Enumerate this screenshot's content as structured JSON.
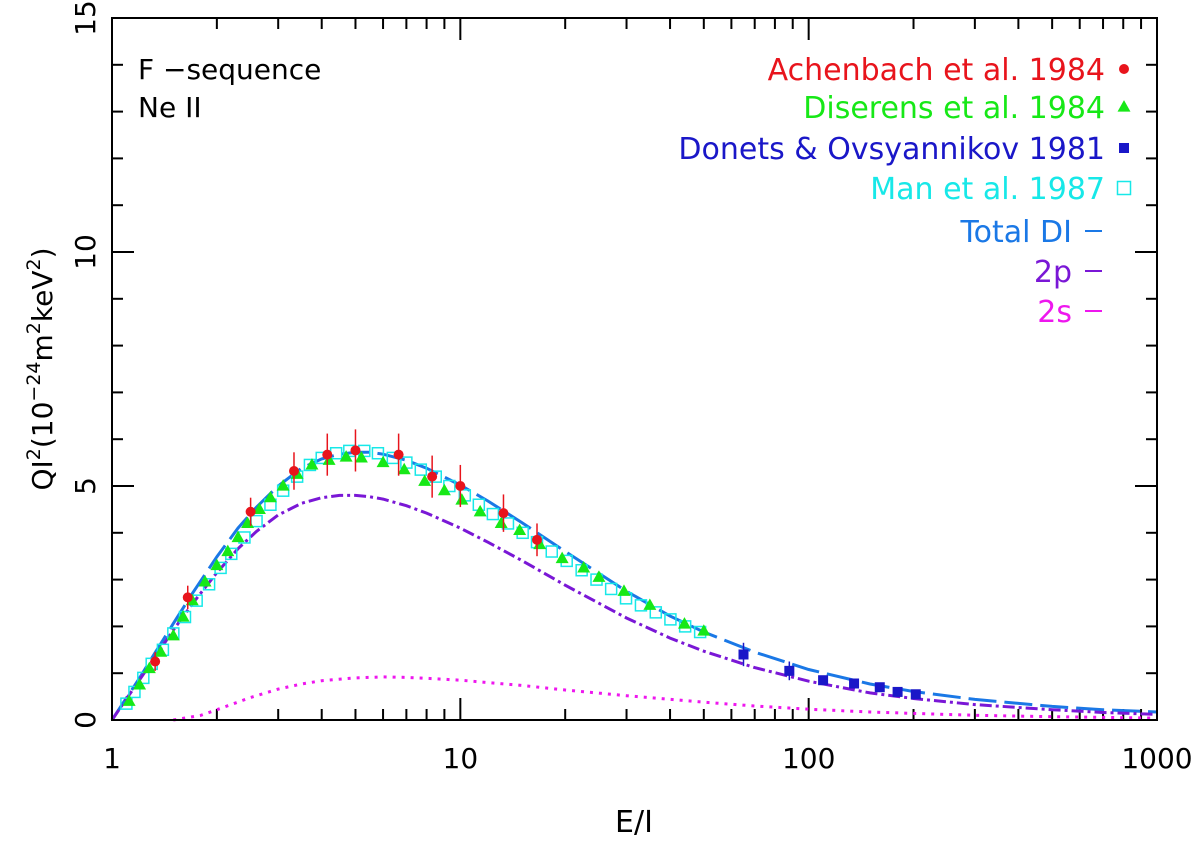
{
  "chart_data": {
    "type": "scatter",
    "xlabel": "E/I",
    "ylabel": {
      "base": "QI",
      "sup1": "2",
      "paren_open": "(10",
      "sup2": "−24",
      "mid": "m",
      "sup3": "2",
      "unit": "keV",
      "sup4": "2",
      "close": ")"
    },
    "x_scale": "log",
    "xlim": [
      1,
      1000
    ],
    "ylim": [
      0,
      15
    ],
    "x_ticks": [
      "1",
      "10",
      "100",
      "1000"
    ],
    "y_ticks": [
      "0",
      "5",
      "10",
      "15"
    ],
    "annotations": [
      "F −sequence",
      "Ne II"
    ],
    "legend_position": "top-right",
    "colors": {
      "achenbach": "#e8141c",
      "diserens": "#17e817",
      "donets": "#1a17c8",
      "man": "#17e8e8",
      "total": "#1a78e6",
      "p2": "#7a17d6",
      "s2": "#ee17ee",
      "axis": "#000000"
    },
    "legend": [
      {
        "key": "achenbach",
        "label": "Achenbach et al. 1984",
        "marker": "circle"
      },
      {
        "key": "diserens",
        "label": "Diserens et al. 1984",
        "marker": "triangle"
      },
      {
        "key": "donets",
        "label": "Donets & Ovsyannikov 1981",
        "marker": "square"
      },
      {
        "key": "man",
        "label": "Man et al. 1987",
        "marker": "open-square"
      },
      {
        "key": "total",
        "label": "Total DI",
        "marker": "line"
      },
      {
        "key": "p2",
        "label": "2p",
        "marker": "line"
      },
      {
        "key": "s2",
        "label": "2s",
        "marker": "line"
      }
    ],
    "series": [
      {
        "key": "achenbach",
        "name": "Achenbach et al. 1984",
        "marker": "circle",
        "points": [
          [
            1.33,
            1.25,
            0.2
          ],
          [
            1.65,
            2.62,
            0.25
          ],
          [
            2.5,
            4.45,
            0.3
          ],
          [
            3.33,
            5.32,
            0.4
          ],
          [
            4.15,
            5.67,
            0.45
          ],
          [
            5.0,
            5.76,
            0.45
          ],
          [
            6.65,
            5.67,
            0.45
          ],
          [
            8.3,
            5.2,
            0.45
          ],
          [
            10.0,
            5.0,
            0.45
          ],
          [
            13.3,
            4.42,
            0.4
          ],
          [
            16.6,
            3.85,
            0.35
          ]
        ]
      },
      {
        "key": "diserens",
        "name": "Diserens et al. 1984",
        "marker": "triangle",
        "points": [
          [
            1.12,
            0.4
          ],
          [
            1.2,
            0.75
          ],
          [
            1.28,
            1.1
          ],
          [
            1.38,
            1.45
          ],
          [
            1.5,
            1.8
          ],
          [
            1.6,
            2.2
          ],
          [
            1.7,
            2.55
          ],
          [
            1.85,
            2.95
          ],
          [
            2.0,
            3.3
          ],
          [
            2.15,
            3.6
          ],
          [
            2.3,
            3.9
          ],
          [
            2.45,
            4.2
          ],
          [
            2.65,
            4.5
          ],
          [
            2.85,
            4.75
          ],
          [
            3.1,
            5.0
          ],
          [
            3.4,
            5.25
          ],
          [
            3.75,
            5.45
          ],
          [
            4.2,
            5.55
          ],
          [
            4.7,
            5.62
          ],
          [
            5.2,
            5.6
          ],
          [
            6.0,
            5.5
          ],
          [
            6.9,
            5.35
          ],
          [
            7.9,
            5.1
          ],
          [
            9.0,
            4.9
          ],
          [
            10.1,
            4.7
          ],
          [
            11.4,
            4.45
          ],
          [
            13.1,
            4.2
          ],
          [
            14.8,
            4.05
          ],
          [
            16.9,
            3.75
          ],
          [
            19.6,
            3.45
          ],
          [
            22.6,
            3.25
          ],
          [
            25.0,
            3.05
          ],
          [
            29.5,
            2.75
          ],
          [
            35.0,
            2.45
          ],
          [
            44.0,
            2.05
          ],
          [
            50.0,
            1.9
          ]
        ]
      },
      {
        "key": "donets",
        "name": "Donets & Ovsyannikov 1981",
        "marker": "square",
        "points": [
          [
            65,
            1.4,
            0.25
          ],
          [
            88,
            1.05,
            0.2
          ],
          [
            110,
            0.85,
            0.1
          ],
          [
            135,
            0.78,
            0.1
          ],
          [
            160,
            0.7,
            0.1
          ],
          [
            180,
            0.6,
            0.1
          ],
          [
            203,
            0.55,
            0.1
          ]
        ]
      },
      {
        "key": "man",
        "name": "Man et al. 1987",
        "marker": "open-square",
        "points": [
          [
            1.1,
            0.35
          ],
          [
            1.16,
            0.6
          ],
          [
            1.23,
            0.9
          ],
          [
            1.3,
            1.2
          ],
          [
            1.4,
            1.5
          ],
          [
            1.5,
            1.85
          ],
          [
            1.62,
            2.2
          ],
          [
            1.75,
            2.55
          ],
          [
            1.9,
            2.9
          ],
          [
            2.05,
            3.25
          ],
          [
            2.2,
            3.55
          ],
          [
            2.4,
            3.9
          ],
          [
            2.6,
            4.25
          ],
          [
            2.85,
            4.6
          ],
          [
            3.1,
            4.9
          ],
          [
            3.4,
            5.2
          ],
          [
            3.7,
            5.45
          ],
          [
            4.0,
            5.6
          ],
          [
            4.4,
            5.7
          ],
          [
            4.8,
            5.75
          ],
          [
            5.3,
            5.75
          ],
          [
            5.8,
            5.7
          ],
          [
            6.4,
            5.6
          ],
          [
            7.0,
            5.5
          ],
          [
            7.7,
            5.35
          ],
          [
            8.5,
            5.2
          ],
          [
            9.3,
            5.0
          ],
          [
            10.3,
            4.8
          ],
          [
            11.3,
            4.6
          ],
          [
            12.4,
            4.4
          ],
          [
            13.7,
            4.2
          ],
          [
            15.1,
            4.0
          ],
          [
            16.6,
            3.8
          ],
          [
            18.3,
            3.6
          ],
          [
            20.2,
            3.4
          ],
          [
            22.3,
            3.2
          ],
          [
            24.6,
            3.0
          ],
          [
            27.1,
            2.8
          ],
          [
            29.9,
            2.6
          ],
          [
            33.0,
            2.45
          ],
          [
            36.4,
            2.3
          ],
          [
            40.1,
            2.15
          ],
          [
            44.2,
            2.0
          ],
          [
            48.8,
            1.88
          ]
        ]
      },
      {
        "key": "total",
        "name": "Total DI",
        "marker": "line",
        "dash": "28,8",
        "curve": [
          [
            1.0,
            0.0
          ],
          [
            1.1,
            0.47
          ],
          [
            1.2,
            0.9
          ],
          [
            1.3,
            1.32
          ],
          [
            1.5,
            2.06
          ],
          [
            1.7,
            2.7
          ],
          [
            2.0,
            3.49
          ],
          [
            2.3,
            4.1
          ],
          [
            2.6,
            4.55
          ],
          [
            3.0,
            5.0
          ],
          [
            3.5,
            5.38
          ],
          [
            4.0,
            5.58
          ],
          [
            4.5,
            5.68
          ],
          [
            5.0,
            5.72
          ],
          [
            5.5,
            5.72
          ],
          [
            6.0,
            5.68
          ],
          [
            7.0,
            5.55
          ],
          [
            8.0,
            5.38
          ],
          [
            10.0,
            5.02
          ],
          [
            12.0,
            4.68
          ],
          [
            15.0,
            4.22
          ],
          [
            20.0,
            3.6
          ],
          [
            30.0,
            2.75
          ],
          [
            40.0,
            2.22
          ],
          [
            50.0,
            1.88
          ],
          [
            70.0,
            1.45
          ],
          [
            100.0,
            1.08
          ],
          [
            150.0,
            0.77
          ],
          [
            200.0,
            0.61
          ],
          [
            300.0,
            0.44
          ],
          [
            500.0,
            0.29
          ],
          [
            700.0,
            0.22
          ],
          [
            1000.0,
            0.17
          ]
        ]
      },
      {
        "key": "p2",
        "name": "2p",
        "marker": "line",
        "dash": "12,4,3,4",
        "curve": [
          [
            1.0,
            0.0
          ],
          [
            1.1,
            0.45
          ],
          [
            1.2,
            0.86
          ],
          [
            1.3,
            1.24
          ],
          [
            1.5,
            1.92
          ],
          [
            1.7,
            2.48
          ],
          [
            2.0,
            3.15
          ],
          [
            2.3,
            3.66
          ],
          [
            2.6,
            4.03
          ],
          [
            3.0,
            4.38
          ],
          [
            3.5,
            4.63
          ],
          [
            4.0,
            4.75
          ],
          [
            4.5,
            4.8
          ],
          [
            5.0,
            4.8
          ],
          [
            5.5,
            4.77
          ],
          [
            6.0,
            4.72
          ],
          [
            7.0,
            4.58
          ],
          [
            8.0,
            4.42
          ],
          [
            10.0,
            4.1
          ],
          [
            12.0,
            3.8
          ],
          [
            15.0,
            3.41
          ],
          [
            20.0,
            2.88
          ],
          [
            30.0,
            2.18
          ],
          [
            40.0,
            1.75
          ],
          [
            50.0,
            1.47
          ],
          [
            70.0,
            1.12
          ],
          [
            100.0,
            0.83
          ],
          [
            150.0,
            0.58
          ],
          [
            200.0,
            0.46
          ],
          [
            300.0,
            0.33
          ],
          [
            500.0,
            0.22
          ],
          [
            700.0,
            0.16
          ],
          [
            1000.0,
            0.12
          ]
        ]
      },
      {
        "key": "s2",
        "name": "2s",
        "marker": "line",
        "dash": "3,6",
        "curve": [
          [
            1.5,
            0.0
          ],
          [
            1.8,
            0.1
          ],
          [
            2.0,
            0.22
          ],
          [
            2.5,
            0.48
          ],
          [
            3.0,
            0.66
          ],
          [
            3.5,
            0.77
          ],
          [
            4.0,
            0.84
          ],
          [
            5.0,
            0.9
          ],
          [
            6.0,
            0.92
          ],
          [
            7.0,
            0.91
          ],
          [
            8.0,
            0.89
          ],
          [
            10.0,
            0.85
          ],
          [
            15.0,
            0.74
          ],
          [
            20.0,
            0.64
          ],
          [
            30.0,
            0.52
          ],
          [
            50.0,
            0.38
          ],
          [
            70.0,
            0.3
          ],
          [
            100.0,
            0.23
          ],
          [
            150.0,
            0.17
          ],
          [
            200.0,
            0.14
          ],
          [
            300.0,
            0.1
          ],
          [
            500.0,
            0.07
          ],
          [
            1000.0,
            0.04
          ]
        ]
      }
    ]
  }
}
